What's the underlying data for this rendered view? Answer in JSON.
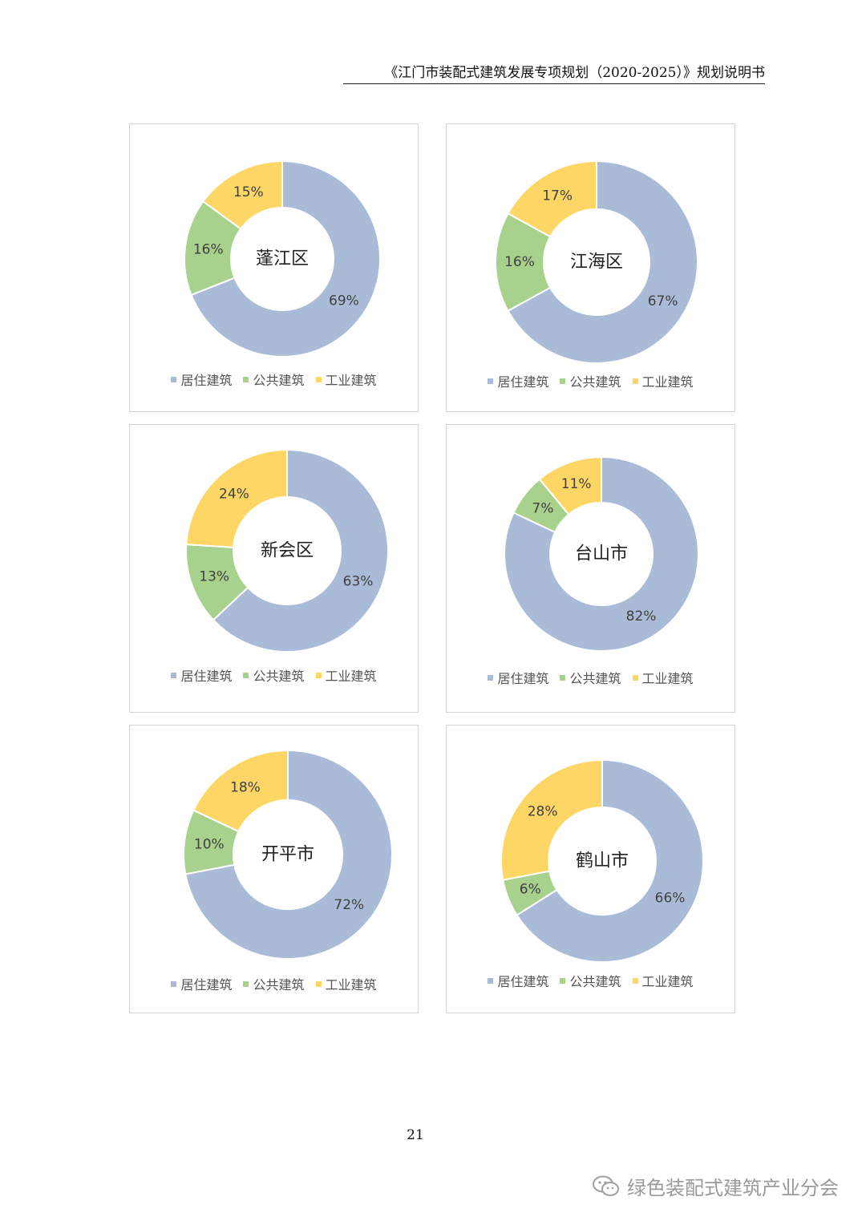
{
  "header": {
    "title": "《江门市装配式建筑发展专项规划（2020-2025）》规划说明书"
  },
  "colors": {
    "residential": "#a9bbd6",
    "public": "#a8d18d",
    "industrial": "#fdd666",
    "label_text": "#404040",
    "center_text": "#222222"
  },
  "legend_labels": [
    "居住建筑",
    "公共建筑",
    "工业建筑"
  ],
  "chart_data": [
    {
      "type": "pie",
      "title": "蓬江区",
      "categories": [
        "居住建筑",
        "公共建筑",
        "工业建筑"
      ],
      "values": [
        69,
        16,
        15
      ],
      "labels": [
        "69%",
        "16%",
        "15%"
      ],
      "legend": "bottom"
    },
    {
      "type": "pie",
      "title": "江海区",
      "categories": [
        "居住建筑",
        "公共建筑",
        "工业建筑"
      ],
      "values": [
        67,
        16,
        17
      ],
      "labels": [
        "67%",
        "16%",
        "17%"
      ],
      "legend": "bottom"
    },
    {
      "type": "pie",
      "title": "新会区",
      "categories": [
        "居住建筑",
        "公共建筑",
        "工业建筑"
      ],
      "values": [
        63,
        13,
        24
      ],
      "labels": [
        "63%",
        "13%",
        "24%"
      ],
      "legend": "bottom"
    },
    {
      "type": "pie",
      "title": "台山市",
      "categories": [
        "居住建筑",
        "公共建筑",
        "工业建筑"
      ],
      "values": [
        82,
        7,
        11
      ],
      "labels": [
        "82%",
        "7%",
        "11%"
      ],
      "legend": "bottom"
    },
    {
      "type": "pie",
      "title": "开平市",
      "categories": [
        "居住建筑",
        "公共建筑",
        "工业建筑"
      ],
      "values": [
        72,
        10,
        18
      ],
      "labels": [
        "72%",
        "10%",
        "18%"
      ],
      "legend": "bottom"
    },
    {
      "type": "pie",
      "title": "鹤山市",
      "categories": [
        "居住建筑",
        "公共建筑",
        "工业建筑"
      ],
      "values": [
        66,
        6,
        28
      ],
      "labels": [
        "66%",
        "6%",
        "28%"
      ],
      "legend": "bottom"
    }
  ],
  "page_number": "21",
  "watermark": {
    "text": "绿色装配式建筑产业分会",
    "icon": "wechat-icon"
  }
}
